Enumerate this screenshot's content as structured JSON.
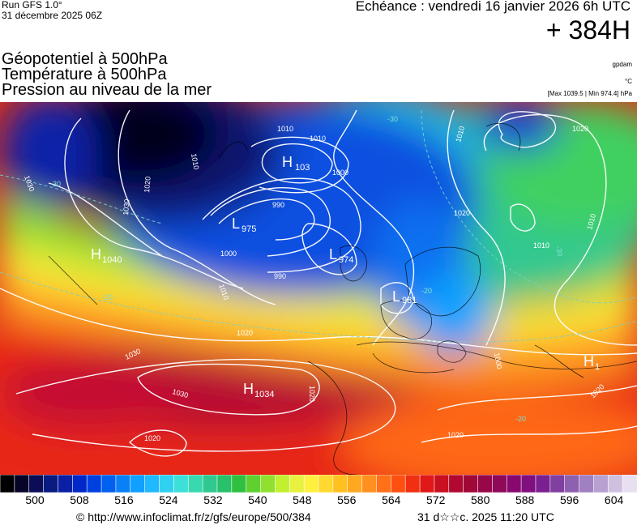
{
  "header": {
    "run": "Run GFS 1.0°",
    "run_date": "31 décembre 2025 06Z",
    "echeance": "Echéance : vendredi 16 janvier 2026 6h UTC",
    "hour": "+ 384H"
  },
  "titles": {
    "line1": "Géopotentiel à 500hPa",
    "line2": "Température à 500hPa",
    "line3": "Pression au niveau de la mer"
  },
  "units": {
    "geopotential": "gpdam",
    "temperature": "°C",
    "pressure_range": "[Max 1039.5 | Min 974.4] hPa"
  },
  "pressure_systems": [
    {
      "type": "H",
      "value": "103"
    },
    {
      "type": "L",
      "value": "975"
    },
    {
      "type": "L",
      "value": "974"
    },
    {
      "type": "H",
      "value": "1040"
    },
    {
      "type": "L",
      "value": "981"
    },
    {
      "type": "H",
      "value": "1034"
    },
    {
      "type": "H",
      "value": "1"
    }
  ],
  "isobar_labels": [
    "1010",
    "1010",
    "1010",
    "1020",
    "1030",
    "1030",
    "1020",
    "1000",
    "990",
    "990",
    "1000",
    "1010",
    "1020",
    "1020",
    "1030",
    "1030",
    "1020",
    "1010",
    "1010",
    "1010",
    "1000",
    "1020",
    "1020",
    "1020"
  ],
  "temperature_labels": [
    "-30",
    "-30",
    "-20",
    "-20",
    "-30",
    "-20"
  ],
  "colorbar": {
    "ticks": [
      "500",
      "508",
      "516",
      "524",
      "532",
      "540",
      "548",
      "556",
      "564",
      "572",
      "580",
      "588",
      "596",
      "604"
    ],
    "colors": [
      "#000000",
      "#070427",
      "#0c0d57",
      "#091a80",
      "#0a1fa3",
      "#0028c8",
      "#0040e0",
      "#0060f0",
      "#0a80f8",
      "#10a0ff",
      "#20b8ff",
      "#30d0f0",
      "#3ce0d8",
      "#38d8b0",
      "#30c890",
      "#28c068",
      "#30c040",
      "#60d030",
      "#90e030",
      "#c0f030",
      "#e8f040",
      "#fff040",
      "#ffd830",
      "#ffc020",
      "#ffa820",
      "#ff9020",
      "#ff7018",
      "#ff5010",
      "#f03010",
      "#e01818",
      "#c81020",
      "#b00830",
      "#a00838",
      "#980848",
      "#900858",
      "#880870",
      "#801080",
      "#7a2090",
      "#8040a0",
      "#9060b0",
      "#a080c0",
      "#b8a0d0",
      "#d0c0e0",
      "#e8e0f0"
    ]
  },
  "footer": {
    "copyright": "© http://www.infoclimat.fr/z/gfs/europe/500/384",
    "stamp": "31 d☆☆c. 2025 11:20 UTC"
  }
}
